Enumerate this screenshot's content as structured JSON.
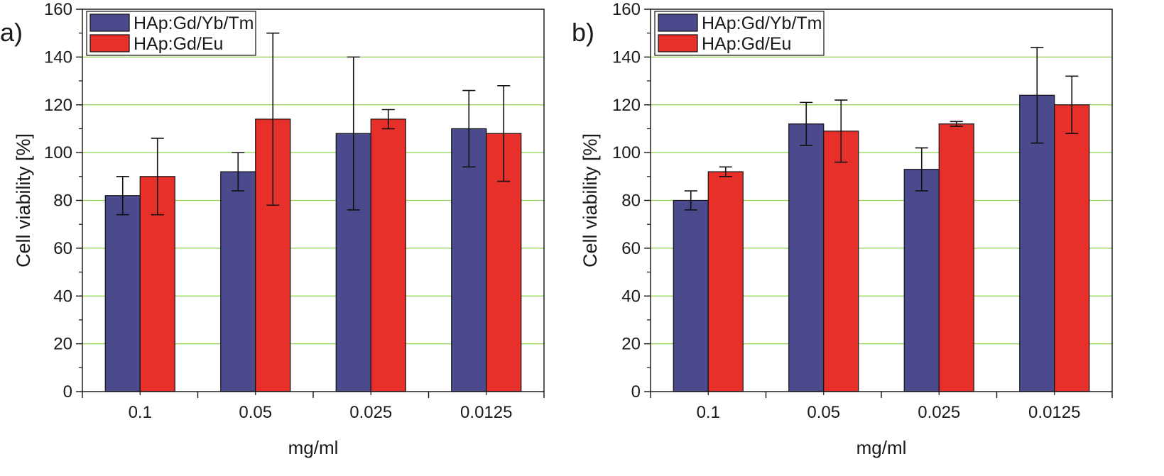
{
  "figure": {
    "panel_labels": [
      "a)",
      "b)"
    ]
  },
  "chart_data": [
    {
      "type": "bar",
      "panel": "a)",
      "categories": [
        "0.1",
        "0.05",
        "0.025",
        "0.0125"
      ],
      "series": [
        {
          "name": "HAp:Gd/Yb/Tm",
          "color": "#4a4a8c",
          "values": [
            82,
            92,
            108,
            110
          ],
          "errors": [
            8,
            8,
            32,
            16
          ]
        },
        {
          "name": "HAp:Gd/Eu",
          "color": "#e8302a",
          "values": [
            90,
            114,
            114,
            108
          ],
          "errors": [
            16,
            36,
            4,
            20
          ]
        }
      ],
      "xlabel": "mg/ml",
      "ylabel": "Cell viability [%]",
      "ylim": [
        0,
        160
      ],
      "yticks": [
        0,
        20,
        40,
        60,
        80,
        100,
        120,
        140,
        160
      ],
      "grid": true,
      "grid_color": "#8fd14f",
      "legend": "top-left"
    },
    {
      "type": "bar",
      "panel": "b)",
      "categories": [
        "0.1",
        "0.05",
        "0.025",
        "0.0125"
      ],
      "series": [
        {
          "name": "HAp:Gd/Yb/Tm",
          "color": "#4a4a8c",
          "values": [
            80,
            112,
            93,
            124
          ],
          "errors": [
            4,
            9,
            9,
            20
          ]
        },
        {
          "name": "HAp:Gd/Eu",
          "color": "#e8302a",
          "values": [
            92,
            109,
            112,
            120
          ],
          "errors": [
            2,
            13,
            1,
            12
          ]
        }
      ],
      "xlabel": "mg/ml",
      "ylabel": "Cell viability [%]",
      "ylim": [
        0,
        160
      ],
      "yticks": [
        0,
        20,
        40,
        60,
        80,
        100,
        120,
        140,
        160
      ],
      "grid": true,
      "grid_color": "#8fd14f",
      "legend": "top-left"
    }
  ]
}
